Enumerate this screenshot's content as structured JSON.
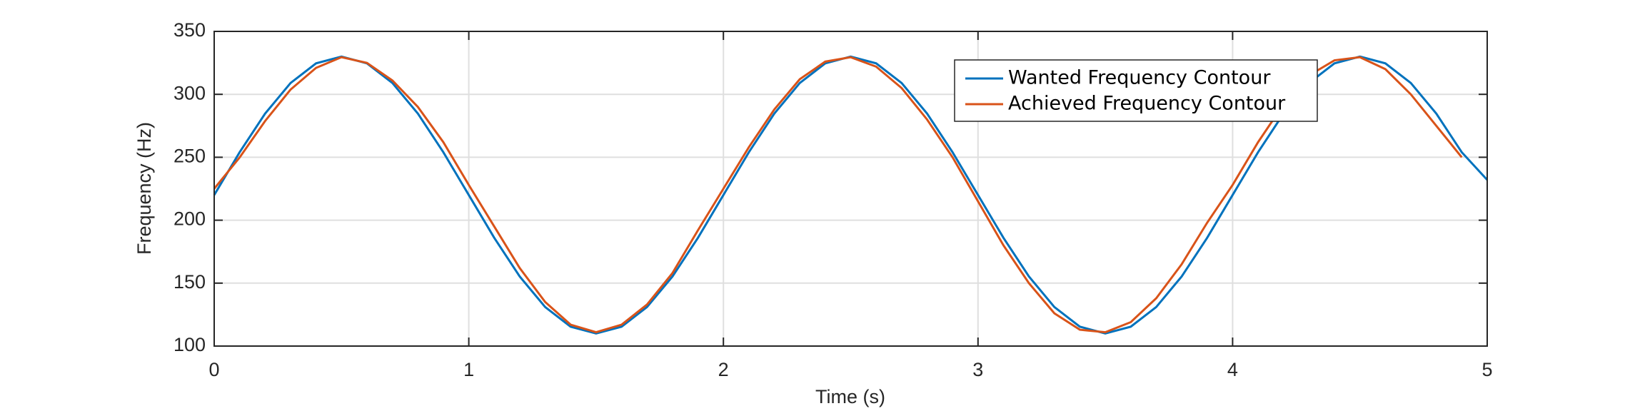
{
  "chart_data": {
    "type": "line",
    "xlabel": "Time (s)",
    "ylabel": "Frequency (Hz)",
    "x": [
      0,
      0.1,
      0.2,
      0.3,
      0.4,
      0.5,
      0.6,
      0.7,
      0.8,
      0.9,
      1,
      1.1,
      1.2,
      1.3,
      1.4,
      1.5,
      1.6,
      1.7,
      1.8,
      1.9,
      2,
      2.1,
      2.2,
      2.3,
      2.4,
      2.5,
      2.6,
      2.7,
      2.8,
      2.9,
      3,
      3.1,
      3.2,
      3.3,
      3.4,
      3.5,
      3.6,
      3.7,
      3.8,
      3.9,
      4,
      4.1,
      4.2,
      4.3,
      4.4,
      4.5,
      4.6,
      4.7,
      4.8,
      4.9,
      5
    ],
    "series": [
      {
        "name": "Wanted Frequency Contour",
        "color": "#0072BD",
        "values": [
          220,
          254.0,
          284.7,
          309.0,
          324.6,
          330,
          324.6,
          309.0,
          284.7,
          254.0,
          220,
          186.0,
          155.3,
          131.0,
          115.4,
          110,
          115.4,
          131.0,
          155.3,
          186.0,
          220,
          254.0,
          284.7,
          309.0,
          324.6,
          330,
          324.6,
          309.0,
          284.7,
          254.0,
          220,
          186.0,
          155.3,
          131.0,
          115.4,
          110,
          115.4,
          131.0,
          155.3,
          186.0,
          220,
          254.0,
          284.7,
          309.0,
          324.6,
          330,
          324.6,
          309.0,
          284.7,
          254.0,
          232
        ]
      },
      {
        "name": "Achieved Frequency Contour",
        "color": "#D95319",
        "values": [
          225,
          249.9,
          278.8,
          303.8,
          321.0,
          329.5,
          325.0,
          311.0,
          290.0,
          262.0,
          228.0,
          195.0,
          162.0,
          135.0,
          117.0,
          111.0,
          117.0,
          133.0,
          158.0,
          192.0,
          225,
          258.0,
          288.0,
          312.0,
          326.0,
          329.5,
          322.0,
          305.0,
          280.0,
          250.0,
          215.0,
          180.0,
          150.0,
          126.0,
          113.0,
          111.0,
          119.0,
          138.0,
          165.0,
          198.0,
          228,
          262.0,
          292.0,
          315.0,
          327.0,
          329.5,
          320.0,
          300.0,
          275.0,
          250.0,
          null
        ]
      }
    ],
    "xlim": [
      0,
      5
    ],
    "xticks": [
      0,
      1,
      2,
      3,
      4,
      5
    ],
    "ylim": [
      100,
      350
    ],
    "yticks": [
      100,
      150,
      200,
      250,
      300,
      350
    ],
    "grid": true,
    "legend": "upper right"
  }
}
